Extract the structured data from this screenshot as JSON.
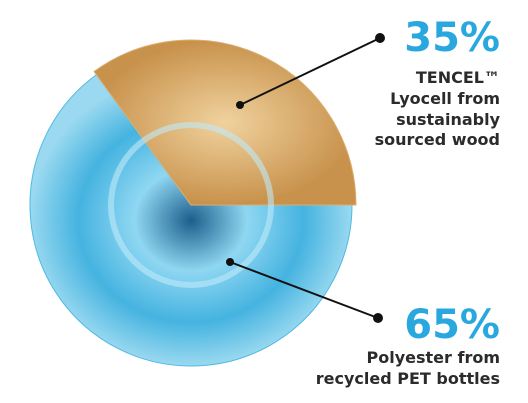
{
  "chart_data": {
    "type": "pie",
    "categories": [
      "TENCEL™\nLyocell from\nsustainably\nsourced wood",
      "Polyester from\nrecycled PET bottles"
    ],
    "values": [
      35,
      65
    ],
    "value_labels": [
      "35%",
      "65%"
    ],
    "colors": [
      "#dcae6e",
      "#4fb9e3"
    ]
  }
}
